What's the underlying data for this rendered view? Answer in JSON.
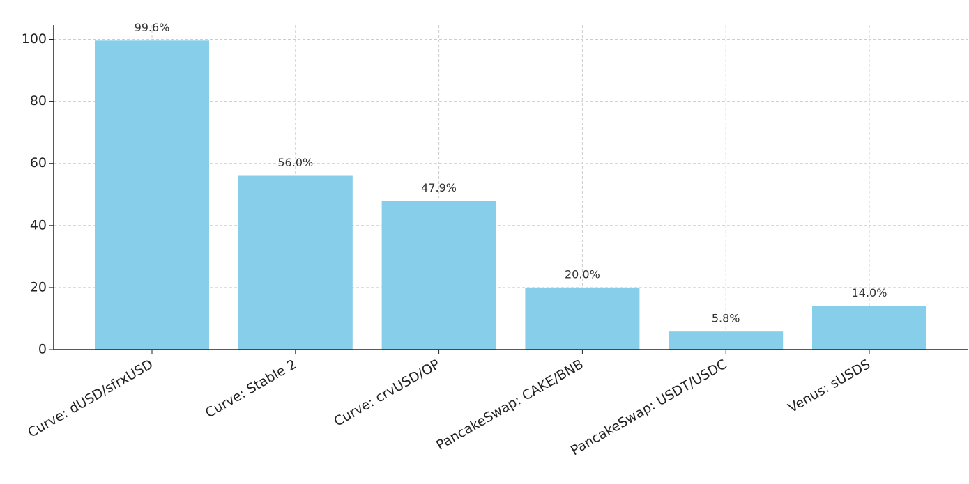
{
  "chart_data": {
    "type": "bar",
    "categories": [
      "Curve: dUSD/sfrxUSD",
      "Curve: Stable 2",
      "Curve: crvUSD/OP",
      "PancakeSwap: CAKE/BNB",
      "PancakeSwap: USDT/USDC",
      "Venus: sUSDS"
    ],
    "values": [
      99.6,
      56.0,
      47.9,
      20.0,
      5.8,
      14.0
    ],
    "value_labels": [
      "99.6%",
      "56.0%",
      "47.9%",
      "20.0%",
      "5.8%",
      "14.0%"
    ],
    "color": "#87ceeb",
    "ylim": [
      0,
      104.6
    ],
    "yticks": [
      0,
      20,
      40,
      60,
      80,
      100
    ],
    "grid": true
  }
}
